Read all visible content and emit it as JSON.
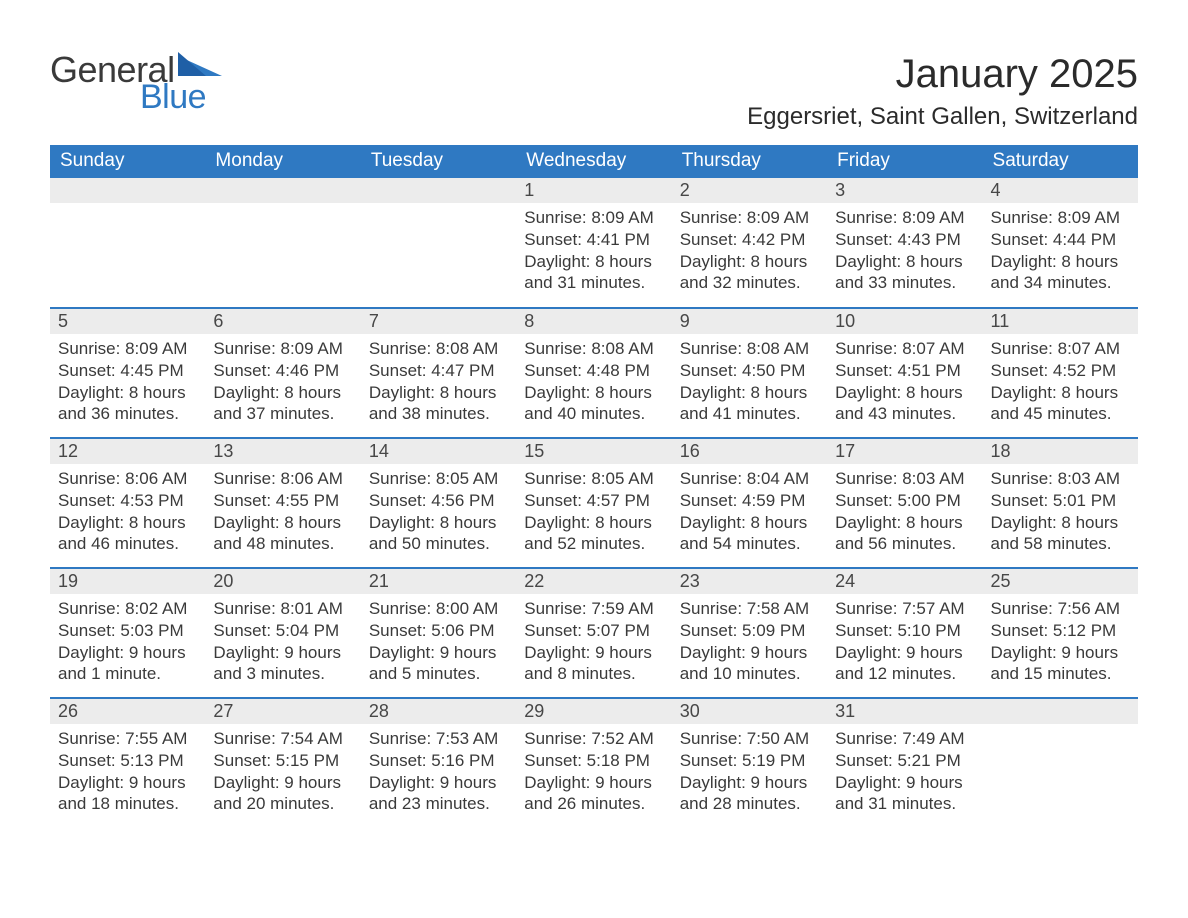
{
  "brand": {
    "part1": "General",
    "part2": "Blue",
    "text_color": "#3a3a3a",
    "accent_color": "#2f79c2"
  },
  "title": "January 2025",
  "location": "Eggersriet, Saint Gallen, Switzerland",
  "colors": {
    "header_bg": "#2f79c2",
    "header_text": "#ffffff",
    "daynum_bg": "#ececec",
    "daynum_text": "#474747",
    "body_text": "#3a3a3a",
    "row_border": "#2f79c2",
    "page_bg": "#ffffff"
  },
  "fonts": {
    "title_pt": 40,
    "location_pt": 24,
    "dayhead_pt": 19,
    "daynum_pt": 18,
    "body_pt": 17
  },
  "day_headers": [
    "Sunday",
    "Monday",
    "Tuesday",
    "Wednesday",
    "Thursday",
    "Friday",
    "Saturday"
  ],
  "weeks": [
    [
      null,
      null,
      null,
      {
        "num": "1",
        "sunrise": "8:09 AM",
        "sunset": "4:41 PM",
        "daylight": "8 hours and 31 minutes."
      },
      {
        "num": "2",
        "sunrise": "8:09 AM",
        "sunset": "4:42 PM",
        "daylight": "8 hours and 32 minutes."
      },
      {
        "num": "3",
        "sunrise": "8:09 AM",
        "sunset": "4:43 PM",
        "daylight": "8 hours and 33 minutes."
      },
      {
        "num": "4",
        "sunrise": "8:09 AM",
        "sunset": "4:44 PM",
        "daylight": "8 hours and 34 minutes."
      }
    ],
    [
      {
        "num": "5",
        "sunrise": "8:09 AM",
        "sunset": "4:45 PM",
        "daylight": "8 hours and 36 minutes."
      },
      {
        "num": "6",
        "sunrise": "8:09 AM",
        "sunset": "4:46 PM",
        "daylight": "8 hours and 37 minutes."
      },
      {
        "num": "7",
        "sunrise": "8:08 AM",
        "sunset": "4:47 PM",
        "daylight": "8 hours and 38 minutes."
      },
      {
        "num": "8",
        "sunrise": "8:08 AM",
        "sunset": "4:48 PM",
        "daylight": "8 hours and 40 minutes."
      },
      {
        "num": "9",
        "sunrise": "8:08 AM",
        "sunset": "4:50 PM",
        "daylight": "8 hours and 41 minutes."
      },
      {
        "num": "10",
        "sunrise": "8:07 AM",
        "sunset": "4:51 PM",
        "daylight": "8 hours and 43 minutes."
      },
      {
        "num": "11",
        "sunrise": "8:07 AM",
        "sunset": "4:52 PM",
        "daylight": "8 hours and 45 minutes."
      }
    ],
    [
      {
        "num": "12",
        "sunrise": "8:06 AM",
        "sunset": "4:53 PM",
        "daylight": "8 hours and 46 minutes."
      },
      {
        "num": "13",
        "sunrise": "8:06 AM",
        "sunset": "4:55 PM",
        "daylight": "8 hours and 48 minutes."
      },
      {
        "num": "14",
        "sunrise": "8:05 AM",
        "sunset": "4:56 PM",
        "daylight": "8 hours and 50 minutes."
      },
      {
        "num": "15",
        "sunrise": "8:05 AM",
        "sunset": "4:57 PM",
        "daylight": "8 hours and 52 minutes."
      },
      {
        "num": "16",
        "sunrise": "8:04 AM",
        "sunset": "4:59 PM",
        "daylight": "8 hours and 54 minutes."
      },
      {
        "num": "17",
        "sunrise": "8:03 AM",
        "sunset": "5:00 PM",
        "daylight": "8 hours and 56 minutes."
      },
      {
        "num": "18",
        "sunrise": "8:03 AM",
        "sunset": "5:01 PM",
        "daylight": "8 hours and 58 minutes."
      }
    ],
    [
      {
        "num": "19",
        "sunrise": "8:02 AM",
        "sunset": "5:03 PM",
        "daylight": "9 hours and 1 minute."
      },
      {
        "num": "20",
        "sunrise": "8:01 AM",
        "sunset": "5:04 PM",
        "daylight": "9 hours and 3 minutes."
      },
      {
        "num": "21",
        "sunrise": "8:00 AM",
        "sunset": "5:06 PM",
        "daylight": "9 hours and 5 minutes."
      },
      {
        "num": "22",
        "sunrise": "7:59 AM",
        "sunset": "5:07 PM",
        "daylight": "9 hours and 8 minutes."
      },
      {
        "num": "23",
        "sunrise": "7:58 AM",
        "sunset": "5:09 PM",
        "daylight": "9 hours and 10 minutes."
      },
      {
        "num": "24",
        "sunrise": "7:57 AM",
        "sunset": "5:10 PM",
        "daylight": "9 hours and 12 minutes."
      },
      {
        "num": "25",
        "sunrise": "7:56 AM",
        "sunset": "5:12 PM",
        "daylight": "9 hours and 15 minutes."
      }
    ],
    [
      {
        "num": "26",
        "sunrise": "7:55 AM",
        "sunset": "5:13 PM",
        "daylight": "9 hours and 18 minutes."
      },
      {
        "num": "27",
        "sunrise": "7:54 AM",
        "sunset": "5:15 PM",
        "daylight": "9 hours and 20 minutes."
      },
      {
        "num": "28",
        "sunrise": "7:53 AM",
        "sunset": "5:16 PM",
        "daylight": "9 hours and 23 minutes."
      },
      {
        "num": "29",
        "sunrise": "7:52 AM",
        "sunset": "5:18 PM",
        "daylight": "9 hours and 26 minutes."
      },
      {
        "num": "30",
        "sunrise": "7:50 AM",
        "sunset": "5:19 PM",
        "daylight": "9 hours and 28 minutes."
      },
      {
        "num": "31",
        "sunrise": "7:49 AM",
        "sunset": "5:21 PM",
        "daylight": "9 hours and 31 minutes."
      },
      null
    ]
  ],
  "labels": {
    "sunrise": "Sunrise: ",
    "sunset": "Sunset: ",
    "daylight": "Daylight: "
  }
}
